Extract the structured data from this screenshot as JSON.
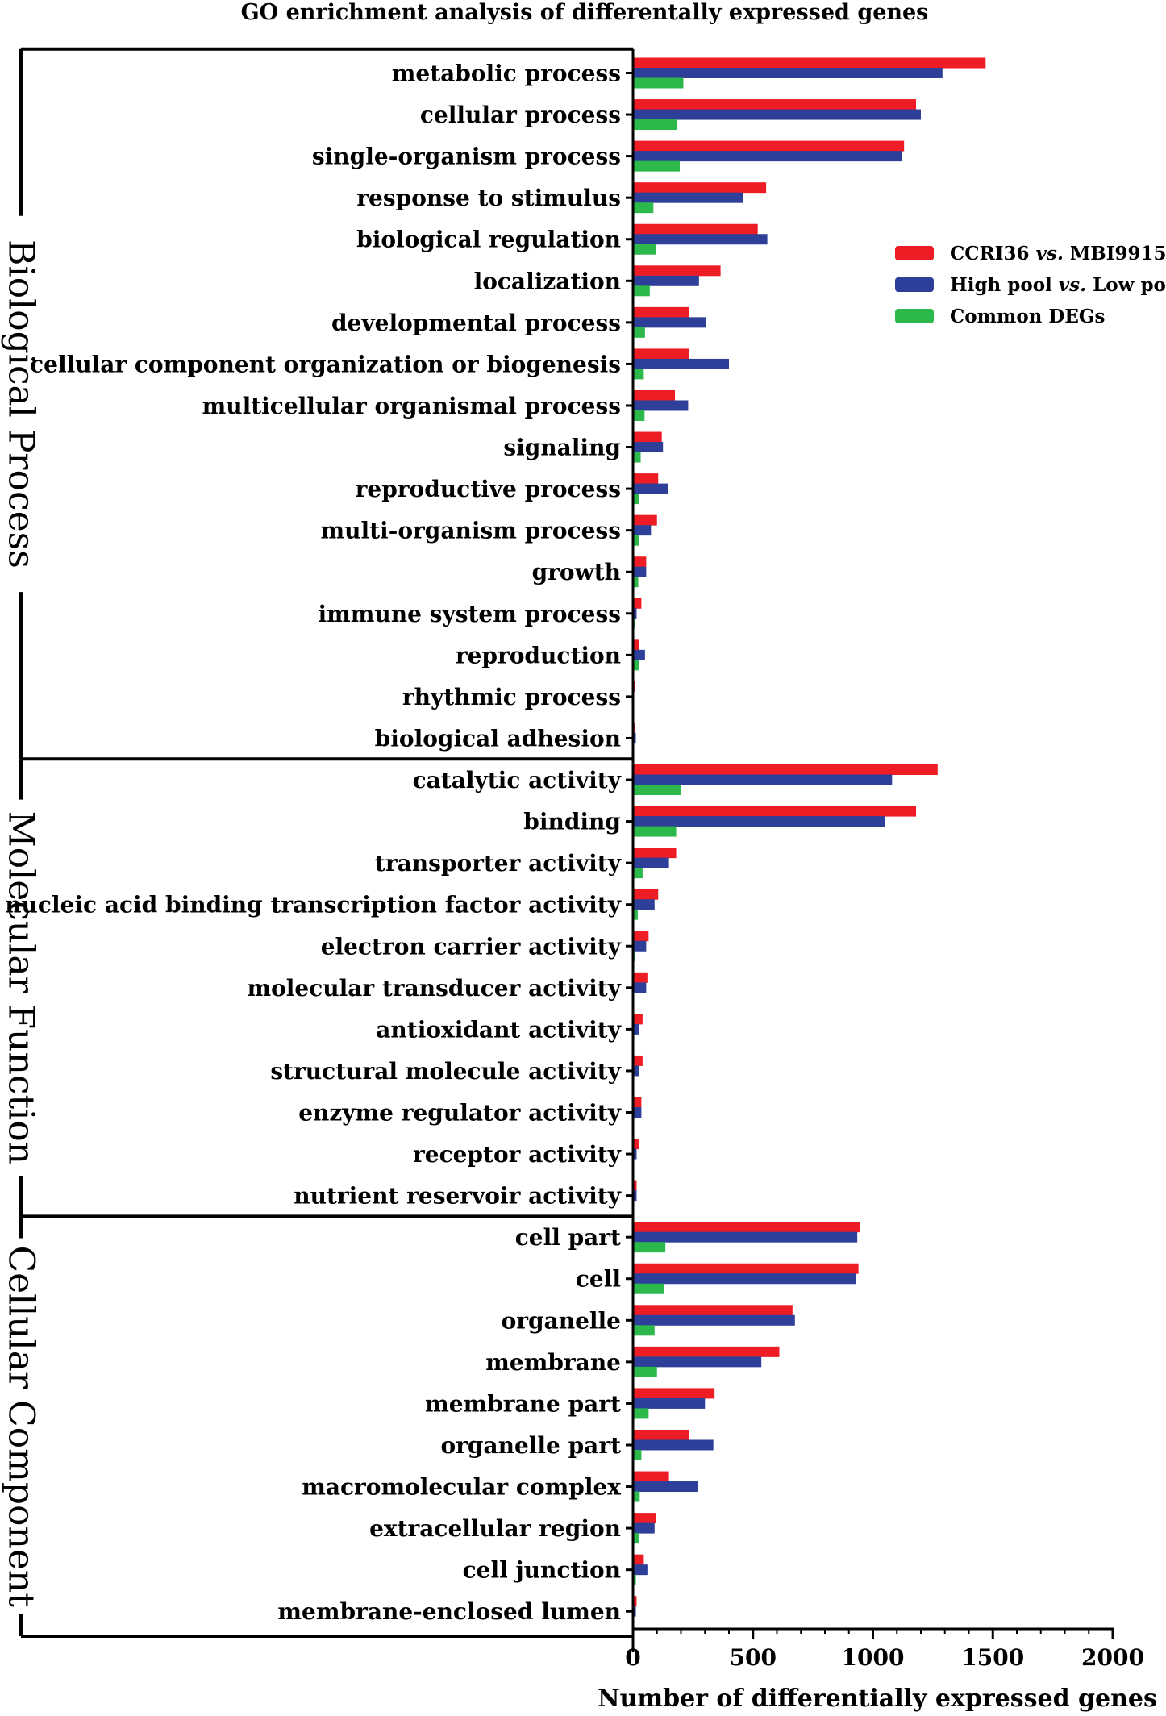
{
  "chart_data": {
    "type": "bar",
    "orientation": "horizontal",
    "title": "GO enrichment analysis of differentally expressed genes",
    "xlabel": "Number of differentially expressed genes",
    "xlim": [
      0,
      2000
    ],
    "xticks": [
      0,
      500,
      1000,
      1500,
      2000
    ],
    "colors": [
      "#ee1c25",
      "#2e3f9a",
      "#2cb84a"
    ],
    "legend": {
      "position": "top-right",
      "entries": [
        {
          "parts": [
            "CCRI36 ",
            "vs.",
            " MBI9915"
          ],
          "italic": [
            false,
            true,
            false
          ]
        },
        {
          "parts": [
            "High pool ",
            "vs.",
            " Low pool"
          ],
          "italic": [
            false,
            true,
            false
          ]
        },
        {
          "parts": [
            "Common DEGs"
          ],
          "italic": [
            false
          ]
        }
      ]
    },
    "series_names": [
      "CCRI36 vs. MBI9915",
      "High pool vs. Low pool",
      "Common DEGs"
    ],
    "groups": [
      {
        "name": "Biological Process",
        "categories": [
          {
            "label": "metabolic process",
            "values": [
              1470,
              1290,
              210
            ]
          },
          {
            "label": "cellular process",
            "values": [
              1180,
              1200,
              185
            ]
          },
          {
            "label": "single-organism process",
            "values": [
              1130,
              1120,
              195
            ]
          },
          {
            "label": "response to stimulus",
            "values": [
              555,
              460,
              85
            ]
          },
          {
            "label": "biological regulation",
            "values": [
              520,
              560,
              95
            ]
          },
          {
            "label": "localization",
            "values": [
              365,
              275,
              70
            ]
          },
          {
            "label": "developmental process",
            "values": [
              235,
              305,
              50
            ]
          },
          {
            "label": "cellular component organization or biogenesis",
            "values": [
              235,
              400,
              45
            ]
          },
          {
            "label": "multicellular organismal process",
            "values": [
              175,
              230,
              48
            ]
          },
          {
            "label": "signaling",
            "values": [
              120,
              125,
              32
            ]
          },
          {
            "label": "reproductive process",
            "values": [
              105,
              145,
              25
            ]
          },
          {
            "label": "multi-organism process",
            "values": [
              100,
              75,
              25
            ]
          },
          {
            "label": "growth",
            "values": [
              55,
              55,
              22
            ]
          },
          {
            "label": "immune system process",
            "values": [
              35,
              15,
              8
            ]
          },
          {
            "label": "reproduction",
            "values": [
              25,
              50,
              25
            ]
          },
          {
            "label": "rhythmic process",
            "values": [
              10,
              5,
              2
            ]
          },
          {
            "label": "biological adhesion",
            "values": [
              10,
              12,
              3
            ]
          }
        ]
      },
      {
        "name": "Molecular Function",
        "categories": [
          {
            "label": "catalytic activity",
            "values": [
              1270,
              1080,
              200
            ]
          },
          {
            "label": "binding",
            "values": [
              1180,
              1050,
              180
            ]
          },
          {
            "label": "transporter activity",
            "values": [
              180,
              150,
              40
            ]
          },
          {
            "label": "nucleic acid binding transcription factor activity",
            "values": [
              105,
              90,
              20
            ]
          },
          {
            "label": "electron carrier activity",
            "values": [
              65,
              55,
              10
            ]
          },
          {
            "label": "molecular transducer activity",
            "values": [
              60,
              55,
              5
            ]
          },
          {
            "label": "antioxidant activity",
            "values": [
              40,
              25,
              5
            ]
          },
          {
            "label": "structural molecule activity",
            "values": [
              40,
              25,
              5
            ]
          },
          {
            "label": "enzyme regulator activity",
            "values": [
              35,
              35,
              5
            ]
          },
          {
            "label": "receptor activity",
            "values": [
              25,
              15,
              3
            ]
          },
          {
            "label": "nutrient reservoir activity",
            "values": [
              15,
              15,
              3
            ]
          }
        ]
      },
      {
        "name": "Cellular Component",
        "categories": [
          {
            "label": "cell part",
            "values": [
              945,
              935,
              135
            ]
          },
          {
            "label": "cell",
            "values": [
              940,
              930,
              130
            ]
          },
          {
            "label": "organelle",
            "values": [
              665,
              675,
              90
            ]
          },
          {
            "label": "membrane",
            "values": [
              610,
              535,
              100
            ]
          },
          {
            "label": "membrane part",
            "values": [
              340,
              300,
              65
            ]
          },
          {
            "label": "organelle part",
            "values": [
              235,
              335,
              35
            ]
          },
          {
            "label": "macromolecular complex",
            "values": [
              150,
              270,
              28
            ]
          },
          {
            "label": "extracellular region",
            "values": [
              95,
              90,
              25
            ]
          },
          {
            "label": "cell junction",
            "values": [
              45,
              60,
              12
            ]
          },
          {
            "label": "membrane-enclosed lumen",
            "values": [
              15,
              12,
              3
            ]
          }
        ]
      }
    ]
  }
}
